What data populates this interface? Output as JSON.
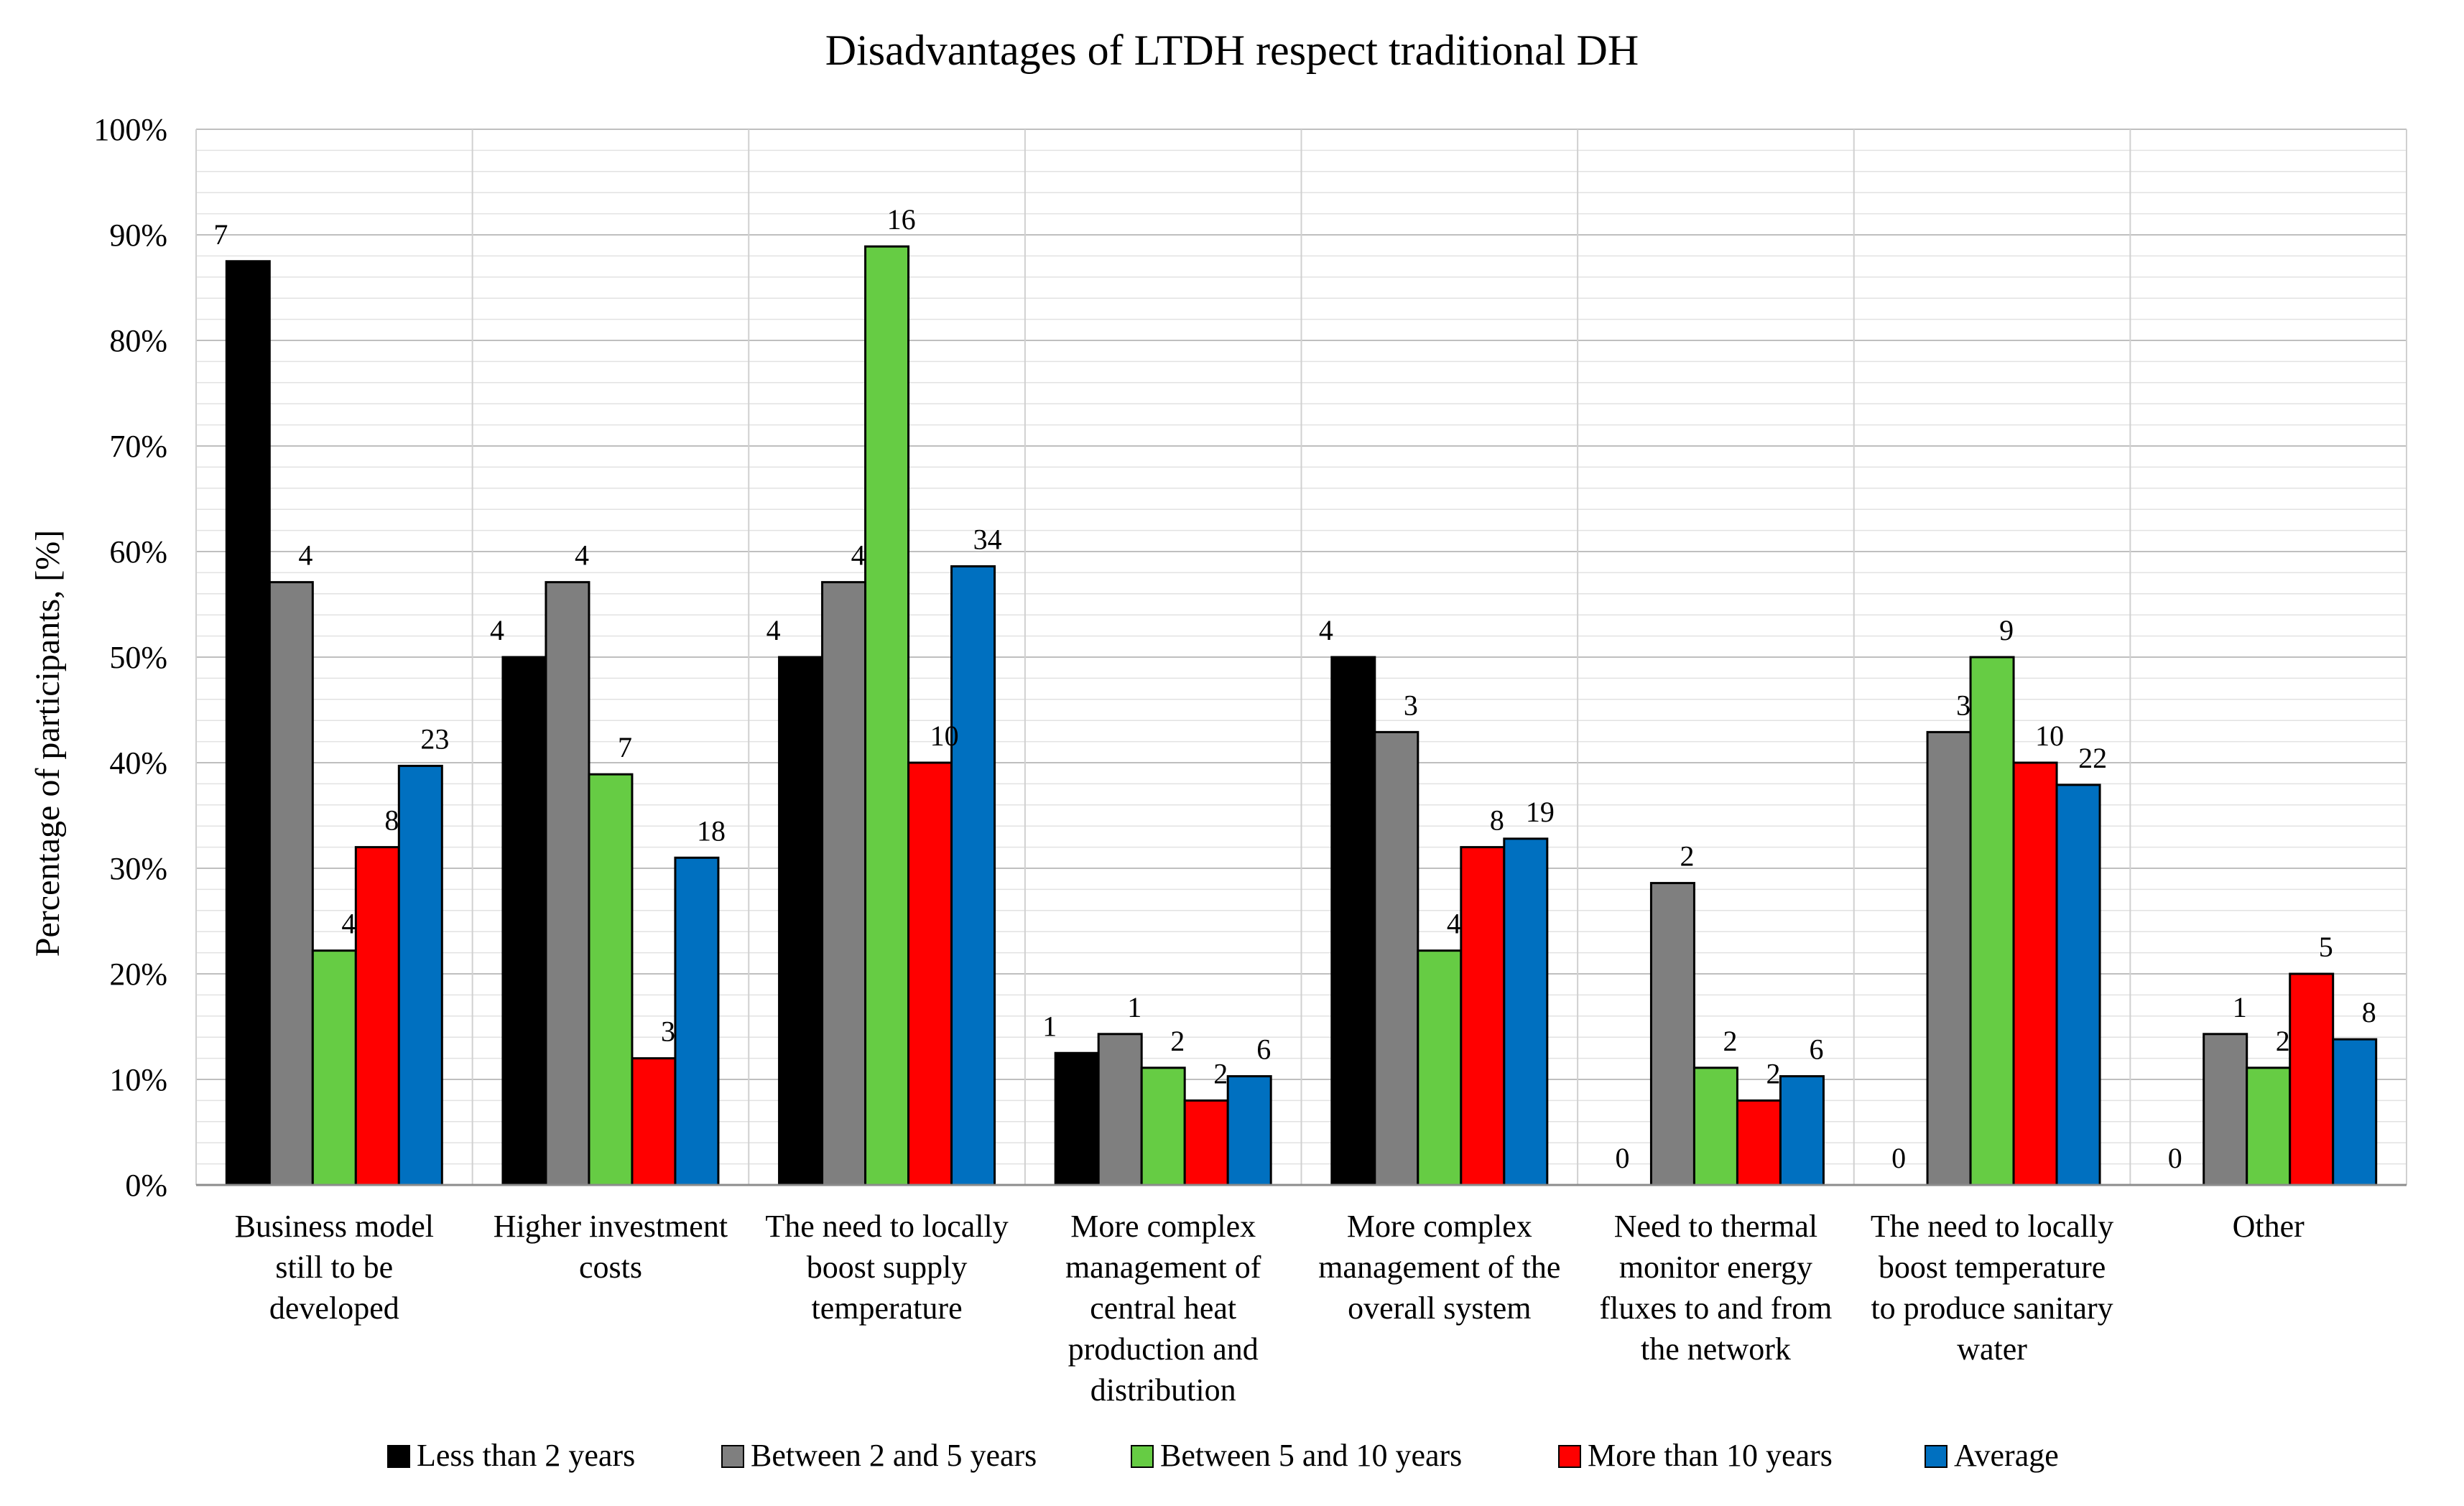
{
  "chart_data": {
    "type": "bar",
    "title": "Disadvantages of LTDH respect traditional DH",
    "xlabel": "",
    "ylabel": "Percentage of participants, [%]",
    "ylim": [
      0,
      100
    ],
    "y_ticks": [
      0,
      10,
      20,
      30,
      40,
      50,
      60,
      70,
      80,
      90,
      100
    ],
    "y_tick_labels": [
      "0%",
      "10%",
      "20%",
      "30%",
      "40%",
      "50%",
      "60%",
      "70%",
      "80%",
      "90%",
      "100%"
    ],
    "grid": true,
    "legend_position": "bottom",
    "categories": [
      [
        "Business model",
        "still to be",
        "developed"
      ],
      [
        "Higher investment",
        "costs"
      ],
      [
        "The need to locally",
        "boost supply",
        "temperature"
      ],
      [
        "More complex",
        "management of",
        "central heat",
        "production and",
        "distribution"
      ],
      [
        "More complex",
        "management of the",
        "overall system"
      ],
      [
        "Need to thermal",
        "monitor energy",
        "fluxes to and from",
        "the network"
      ],
      [
        "The need to locally",
        "boost temperature",
        "to produce sanitary",
        "water"
      ],
      [
        "Other"
      ]
    ],
    "series": [
      {
        "name": "Less than 2 years",
        "color": "#000000",
        "values": [
          87.5,
          50,
          50,
          12.5,
          50,
          0,
          0,
          0
        ],
        "labels": [
          "7",
          "4",
          "4",
          "1",
          "4",
          "0",
          "0",
          "0"
        ]
      },
      {
        "name": "Between 2 and 5 years",
        "color": "#7f7f7f",
        "values": [
          57.1,
          57.1,
          57.1,
          14.3,
          42.9,
          28.6,
          42.9,
          14.3
        ],
        "labels": [
          "4",
          "4",
          "4",
          "1",
          "3",
          "2",
          "3",
          "1"
        ]
      },
      {
        "name": "Between 5 and 10 years",
        "color": "#66cc44",
        "values": [
          22.2,
          38.9,
          88.9,
          11.1,
          22.2,
          11.1,
          50,
          11.1
        ],
        "labels": [
          "4",
          "7",
          "16",
          "2",
          "4",
          "2",
          "9",
          "2"
        ]
      },
      {
        "name": "More than 10 years",
        "color": "#ff0000",
        "values": [
          32,
          12,
          40,
          8,
          32,
          8,
          40,
          20
        ],
        "labels": [
          "8",
          "3",
          "10",
          "2",
          "8",
          "2",
          "10",
          "5"
        ]
      },
      {
        "name": "Average",
        "color": "#0070c0",
        "values": [
          39.7,
          31,
          58.6,
          10.3,
          32.8,
          10.3,
          37.9,
          13.8
        ],
        "labels": [
          "23",
          "18",
          "34",
          "6",
          "19",
          "6",
          "22",
          "8"
        ]
      }
    ]
  }
}
